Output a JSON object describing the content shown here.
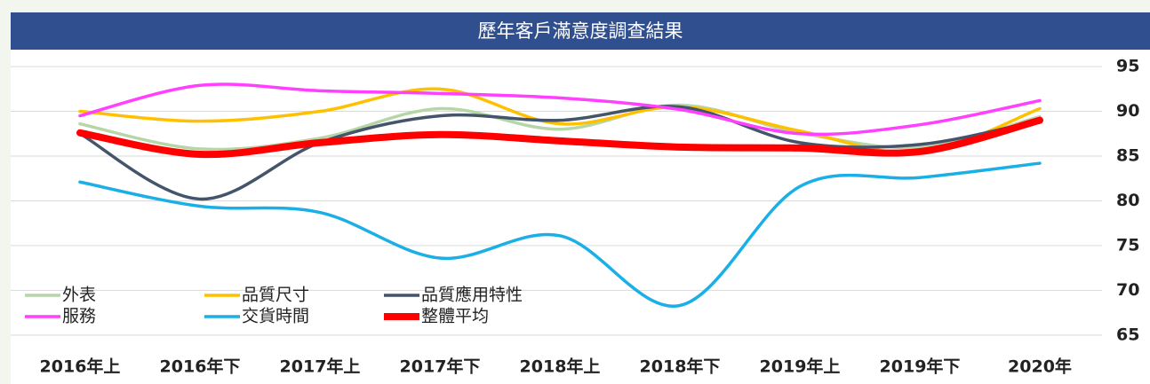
{
  "chart_data": {
    "type": "line",
    "title": "歷年客戶滿意度調查結果",
    "categories": [
      "2016年上",
      "2016年下",
      "2017年上",
      "2017年下",
      "2018年上",
      "2018年下",
      "2019年上",
      "2019年下",
      "2020年"
    ],
    "series": [
      {
        "name": "外表",
        "color": "#b5d6a7",
        "values": [
          88.6,
          85.8,
          87,
          90.3,
          88,
          90.7,
          87.6,
          86,
          89.4
        ]
      },
      {
        "name": "品質尺寸",
        "color": "#ffc000",
        "values": [
          90,
          88.9,
          90,
          92.5,
          88.6,
          90.5,
          87.8,
          85.4,
          90.3
        ]
      },
      {
        "name": "品質應用特性",
        "color": "#44546a",
        "values": [
          87.5,
          80.2,
          86.5,
          89.5,
          89,
          90.5,
          86.5,
          86.3,
          89
        ]
      },
      {
        "name": "服務",
        "color": "#ff40ff",
        "values": [
          89.5,
          92.9,
          92.3,
          92,
          91.5,
          90.2,
          87.5,
          88.5,
          91.2
        ]
      },
      {
        "name": "交貨時間",
        "color": "#1aafe6",
        "values": [
          82.1,
          79.4,
          78.7,
          73.6,
          76.1,
          68.3,
          81.6,
          82.6,
          84.2
        ]
      },
      {
        "name": "整體平均",
        "color": "#ff0000",
        "values": [
          87.6,
          85.2,
          86.5,
          87.4,
          86.7,
          86,
          85.9,
          85.5,
          89
        ]
      }
    ],
    "ylim": [
      63,
      96
    ],
    "yticks": [
      65,
      70,
      75,
      80,
      85,
      90,
      95
    ],
    "grid": true
  }
}
